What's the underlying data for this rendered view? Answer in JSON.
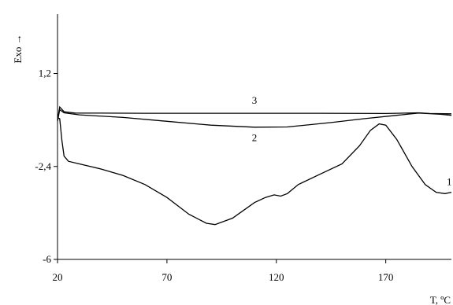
{
  "chart_data": {
    "type": "line",
    "title": "",
    "xlabel": "T, ºC",
    "ylabel": "Exo →",
    "xlim": [
      20,
      200
    ],
    "ylim": [
      -6,
      3.5
    ],
    "x_ticks": [
      {
        "value": 20,
        "label": "20"
      },
      {
        "value": 70,
        "label": "70"
      },
      {
        "value": 120,
        "label": "120"
      },
      {
        "value": 170,
        "label": "170"
      }
    ],
    "y_ticks": [
      {
        "value": 1.2,
        "label": "1,2"
      },
      {
        "value": -2.4,
        "label": "-2,4"
      },
      {
        "value": -6,
        "label": "-6"
      }
    ],
    "grid": false,
    "series": [
      {
        "name": "3",
        "label_at": [
          110,
          0.15
        ],
        "points": [
          [
            20,
            -0.6
          ],
          [
            21,
            -0.1
          ],
          [
            23,
            -0.28
          ],
          [
            28,
            -0.33
          ],
          [
            60,
            -0.34
          ],
          [
            100,
            -0.34
          ],
          [
            140,
            -0.34
          ],
          [
            170,
            -0.35
          ],
          [
            185,
            -0.32
          ],
          [
            190,
            -0.35
          ],
          [
            200,
            -0.36
          ]
        ]
      },
      {
        "name": "2",
        "label_at": [
          110,
          -1.3
        ],
        "points": [
          [
            20,
            -0.65
          ],
          [
            21,
            -0.2
          ],
          [
            23,
            -0.32
          ],
          [
            30,
            -0.4
          ],
          [
            50,
            -0.5
          ],
          [
            70,
            -0.65
          ],
          [
            90,
            -0.8
          ],
          [
            110,
            -0.88
          ],
          [
            125,
            -0.87
          ],
          [
            145,
            -0.7
          ],
          [
            160,
            -0.55
          ],
          [
            175,
            -0.42
          ],
          [
            185,
            -0.33
          ],
          [
            195,
            -0.38
          ],
          [
            200,
            -0.42
          ]
        ]
      },
      {
        "name": "1",
        "label_at": [
          199,
          -3.0
        ],
        "points": [
          [
            20,
            -0.5
          ],
          [
            21,
            -0.55
          ],
          [
            22,
            -1.4
          ],
          [
            23,
            -2.0
          ],
          [
            25,
            -2.2
          ],
          [
            30,
            -2.3
          ],
          [
            40,
            -2.5
          ],
          [
            50,
            -2.75
          ],
          [
            60,
            -3.1
          ],
          [
            70,
            -3.6
          ],
          [
            80,
            -4.25
          ],
          [
            88,
            -4.6
          ],
          [
            92,
            -4.65
          ],
          [
            100,
            -4.4
          ],
          [
            110,
            -3.8
          ],
          [
            115,
            -3.6
          ],
          [
            119,
            -3.5
          ],
          [
            122,
            -3.55
          ],
          [
            125,
            -3.45
          ],
          [
            130,
            -3.1
          ],
          [
            140,
            -2.7
          ],
          [
            150,
            -2.3
          ],
          [
            158,
            -1.6
          ],
          [
            163,
            -1.0
          ],
          [
            167,
            -0.75
          ],
          [
            170,
            -0.8
          ],
          [
            175,
            -1.35
          ],
          [
            182,
            -2.4
          ],
          [
            188,
            -3.1
          ],
          [
            193,
            -3.4
          ],
          [
            197,
            -3.45
          ],
          [
            200,
            -3.4
          ]
        ]
      }
    ]
  }
}
